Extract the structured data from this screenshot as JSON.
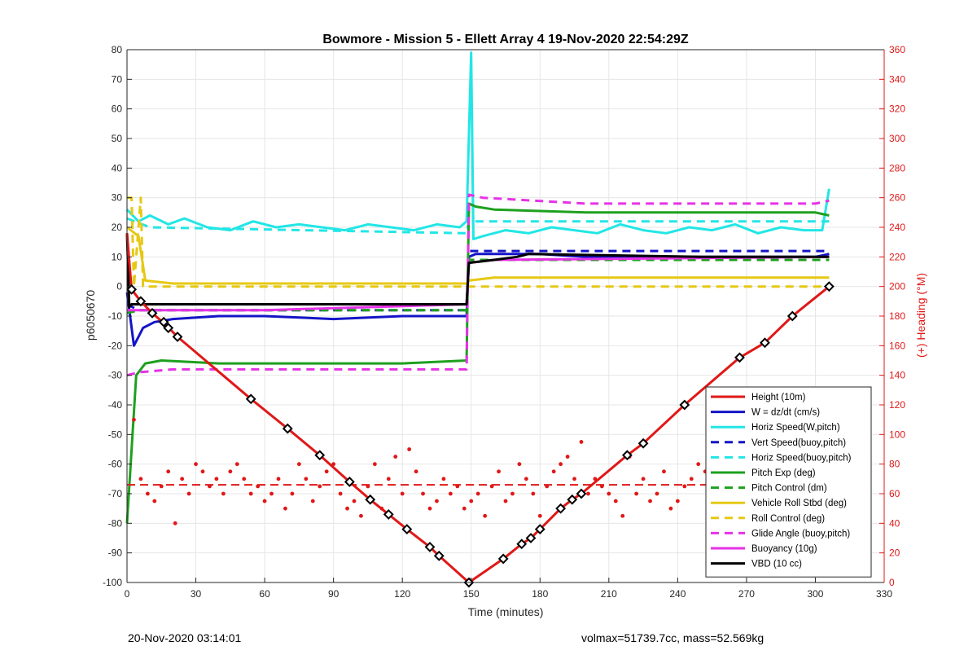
{
  "footer": {
    "left": "20-Nov-2020 03:14:01",
    "right": "volmax=51739.7cc, mass=52.569kg"
  },
  "chart_data": {
    "type": "line",
    "title": "Bowmore - Mission 5 - Ellett Array 4 19-Nov-2020 22:54:29Z",
    "xlabel": "Time (minutes)",
    "ylabel": "p6050670",
    "y2label": "(+) Heading (°M)",
    "xlim": [
      0,
      330
    ],
    "ylim": [
      -100,
      80
    ],
    "y2lim": [
      0,
      360
    ],
    "xticks": [
      0,
      30,
      60,
      90,
      120,
      150,
      180,
      210,
      240,
      270,
      300,
      330
    ],
    "yticks": [
      80,
      70,
      60,
      50,
      40,
      30,
      20,
      10,
      0,
      -10,
      -20,
      -30,
      -40,
      -50,
      -60,
      -70,
      -80,
      -90,
      -100
    ],
    "y2ticks": [
      360,
      340,
      320,
      300,
      280,
      260,
      240,
      220,
      200,
      180,
      160,
      140,
      120,
      100,
      80,
      60,
      40,
      20,
      0
    ],
    "grid": true,
    "legend_position": "bottom-right",
    "colors": {
      "red": "#e01818",
      "blue": "#1414c8",
      "cyan": "#22e6e6",
      "green": "#1ea01e",
      "yellow": "#e6c814",
      "magenta": "#e632e6",
      "black": "#000000"
    },
    "series": [
      {
        "name": "Height (10m)",
        "color": "#e01818",
        "style": "solid",
        "x": [
          0,
          2,
          6,
          11,
          17,
          22,
          54,
          70,
          84,
          97,
          106,
          114,
          122,
          132,
          136,
          149,
          164,
          172,
          176,
          180,
          189,
          194,
          198,
          218,
          225,
          243,
          267,
          278,
          290,
          298,
          306
        ],
        "y": [
          18,
          -1,
          -5,
          -9,
          -13,
          -17,
          -38,
          -48,
          -57,
          -66,
          -72,
          -77,
          -82,
          -88,
          -91,
          -100,
          -92,
          -87,
          -85,
          -82,
          -75,
          -72,
          -70,
          -57,
          -53,
          -40,
          -24,
          -19,
          -10,
          -5,
          0
        ]
      },
      {
        "name": "W = dz/dt (cm/s)",
        "color": "#1414c8",
        "style": "solid",
        "x": [
          0,
          3,
          7,
          12,
          20,
          40,
          60,
          90,
          120,
          148,
          149,
          152,
          160,
          180,
          200,
          240,
          280,
          300,
          306
        ],
        "y": [
          -2,
          -20,
          -14,
          -12,
          -11,
          -10,
          -10,
          -11,
          -10,
          -10,
          10,
          11,
          11,
          11,
          10,
          10,
          10,
          10,
          11
        ]
      },
      {
        "name": "Horiz Speed(W,pitch)",
        "color": "#22e6e6",
        "style": "solid",
        "x": [
          0,
          5,
          10,
          18,
          25,
          35,
          45,
          55,
          65,
          75,
          85,
          95,
          105,
          115,
          125,
          135,
          145,
          148,
          150,
          151,
          155,
          165,
          175,
          185,
          195,
          205,
          215,
          225,
          235,
          245,
          255,
          265,
          275,
          285,
          295,
          303,
          306
        ],
        "y": [
          26,
          22,
          24,
          21,
          23,
          20,
          19,
          22,
          20,
          21,
          20,
          19,
          21,
          20,
          19,
          21,
          20,
          22,
          79,
          16,
          17,
          19,
          18,
          20,
          19,
          18,
          21,
          19,
          18,
          20,
          19,
          21,
          18,
          20,
          19,
          19,
          33
        ]
      },
      {
        "name": "Vert Speed(buoy,pitch)",
        "color": "#1414c8",
        "style": "dashed",
        "x": [
          0,
          5,
          148,
          149,
          160,
          306
        ],
        "y": [
          -6,
          -8,
          -8,
          12,
          12,
          12
        ]
      },
      {
        "name": "Horiz Speed(buoy,pitch)",
        "color": "#22e6e6",
        "style": "dashed",
        "x": [
          0,
          10,
          148,
          149,
          306
        ],
        "y": [
          23,
          20,
          18,
          22,
          22
        ]
      },
      {
        "name": "Pitch Exp (deg)",
        "color": "#1ea01e",
        "style": "solid",
        "x": [
          0,
          4,
          8,
          15,
          40,
          80,
          120,
          148,
          149,
          152,
          160,
          200,
          250,
          300,
          306
        ],
        "y": [
          -80,
          -30,
          -26,
          -25,
          -26,
          -26,
          -26,
          -25,
          28,
          27,
          26,
          25,
          25,
          25,
          24
        ]
      },
      {
        "name": "Pitch Control (dm)",
        "color": "#1ea01e",
        "style": "dashed",
        "x": [
          0,
          5,
          148,
          149,
          306
        ],
        "y": [
          -9,
          -8,
          -8,
          9,
          9
        ]
      },
      {
        "name": "Vehicle Roll Stbd (deg)",
        "color": "#e6c814",
        "style": "solid",
        "x": [
          0,
          5,
          8,
          20,
          40,
          80,
          120,
          148,
          149,
          160,
          200,
          250,
          300,
          306
        ],
        "y": [
          20,
          17,
          2,
          1,
          1,
          1,
          1,
          1,
          2,
          3,
          3,
          3,
          3,
          3
        ]
      },
      {
        "name": "Roll Control (deg)",
        "color": "#e6c814",
        "style": "dashed",
        "x": [
          0,
          2,
          3,
          6,
          7,
          148,
          149,
          160,
          306
        ],
        "y": [
          30,
          30,
          0,
          30,
          0,
          0,
          0,
          0,
          0
        ]
      },
      {
        "name": "Glide Angle (buoy,pitch)",
        "color": "#e632e6",
        "style": "dashed",
        "x": [
          0,
          5,
          20,
          148,
          149,
          155,
          200,
          250,
          300,
          306
        ],
        "y": [
          -30,
          -29,
          -28,
          -28,
          31,
          30,
          28,
          28,
          28,
          29
        ]
      },
      {
        "name": "Buoyancy (10g)",
        "color": "#e632e6",
        "style": "solid",
        "x": [
          0,
          5,
          60,
          148,
          149,
          160,
          306
        ],
        "y": [
          -8,
          -8,
          -8,
          -6,
          8,
          9,
          10
        ]
      },
      {
        "name": "VBD (10 cc)",
        "color": "#000000",
        "style": "solid",
        "x": [
          0,
          1,
          2,
          148,
          149,
          160,
          170,
          175,
          250,
          306
        ],
        "y": [
          18,
          -7,
          -6,
          -6,
          8,
          9,
          10,
          11,
          10,
          10
        ]
      }
    ],
    "heading_series": {
      "color": "#e01818",
      "axis": "right",
      "mean": 66,
      "x": [
        3,
        6,
        9,
        12,
        15,
        18,
        21,
        24,
        27,
        30,
        33,
        36,
        39,
        42,
        45,
        48,
        51,
        54,
        57,
        60,
        63,
        66,
        69,
        72,
        75,
        78,
        81,
        84,
        87,
        90,
        93,
        96,
        99,
        102,
        105,
        108,
        111,
        114,
        117,
        120,
        123,
        126,
        129,
        132,
        135,
        138,
        141,
        144,
        147,
        150,
        153,
        156,
        159,
        162,
        165,
        168,
        171,
        174,
        177,
        180,
        183,
        186,
        189,
        192,
        195,
        198,
        201,
        204,
        207,
        210,
        213,
        216,
        219,
        222,
        225,
        228,
        231,
        234,
        237,
        240,
        243,
        246,
        249,
        252,
        255,
        258,
        261,
        264,
        267,
        270,
        273,
        276,
        279,
        282,
        285,
        288,
        291,
        294,
        297,
        300,
        303
      ],
      "y": [
        110,
        70,
        60,
        55,
        65,
        75,
        40,
        70,
        60,
        80,
        75,
        65,
        70,
        60,
        75,
        80,
        70,
        60,
        65,
        55,
        60,
        70,
        50,
        60,
        80,
        70,
        55,
        65,
        75,
        80,
        60,
        50,
        55,
        45,
        65,
        80,
        50,
        70,
        85,
        60,
        90,
        75,
        60,
        50,
        55,
        70,
        60,
        65,
        50,
        55,
        60,
        45,
        65,
        75,
        55,
        60,
        80,
        70,
        60,
        45,
        65,
        75,
        80,
        85,
        70,
        95,
        60,
        70,
        65,
        60,
        55,
        45,
        85,
        60,
        70,
        55,
        60,
        75,
        50,
        55,
        65,
        70,
        80,
        75,
        60,
        65,
        70,
        60,
        55,
        65,
        80,
        60,
        70,
        75,
        65,
        70,
        55,
        60,
        50,
        40,
        35
      ]
    },
    "markers": {
      "color": "#000000",
      "shape": "diamond",
      "x": [
        2,
        6,
        11,
        16,
        18,
        22,
        54,
        70,
        84,
        97,
        106,
        114,
        122,
        132,
        136,
        149,
        164,
        172,
        176,
        180,
        189,
        194,
        198,
        218,
        225,
        243,
        267,
        278,
        290,
        306
      ],
      "y": [
        -1,
        -5,
        -9,
        -12,
        -14,
        -17,
        -38,
        -48,
        -57,
        -66,
        -72,
        -77,
        -82,
        -88,
        -91,
        -100,
        -92,
        -87,
        -85,
        -82,
        -75,
        -72,
        -70,
        -57,
        -53,
        -40,
        -24,
        -19,
        -10,
        0
      ]
    }
  }
}
